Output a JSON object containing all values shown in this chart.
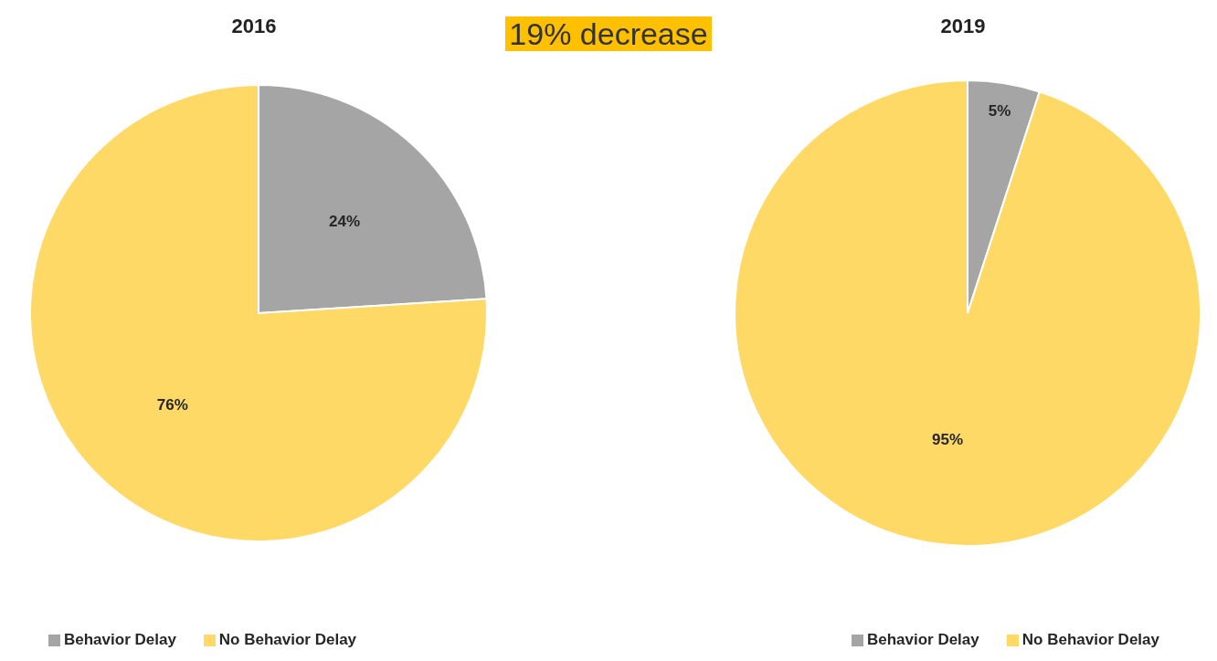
{
  "chart_data": [
    {
      "type": "pie",
      "title": "2016",
      "categories": [
        "Behavior Delay",
        "No Behavior Delay"
      ],
      "values": [
        24,
        76
      ],
      "colors": [
        "#a5a5a5",
        "#ffd966"
      ],
      "value_labels": [
        "24%",
        "76%"
      ],
      "legend": "bottom left",
      "annotations": [
        "19% decrease"
      ]
    },
    {
      "type": "pie",
      "title": "2019",
      "categories": [
        "Behavior Delay",
        "No Behavior Delay"
      ],
      "values": [
        5,
        95
      ],
      "colors": [
        "#a5a5a5",
        "#ffd966"
      ],
      "value_labels": [
        "5%",
        "95%"
      ],
      "legend": "bottom right"
    }
  ]
}
